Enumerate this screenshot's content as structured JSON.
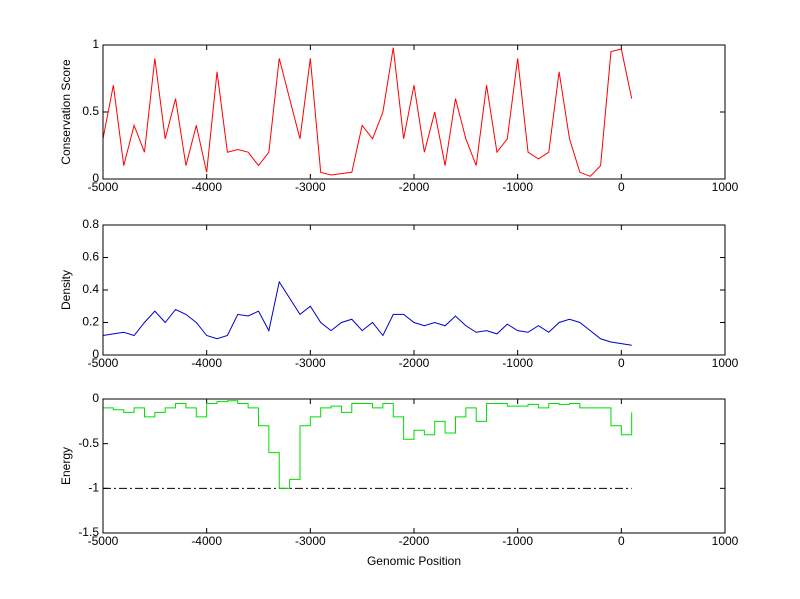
{
  "chart_data": [
    {
      "type": "line",
      "ylabel": "Conservation Score",
      "color": "#ff0000",
      "x": [
        -5000,
        -4900,
        -4800,
        -4700,
        -4600,
        -4500,
        -4400,
        -4300,
        -4200,
        -4100,
        -4000,
        -3900,
        -3800,
        -3700,
        -3600,
        -3500,
        -3400,
        -3300,
        -3200,
        -3100,
        -3000,
        -2900,
        -2800,
        -2700,
        -2600,
        -2500,
        -2400,
        -2300,
        -2200,
        -2100,
        -2000,
        -1900,
        -1800,
        -1700,
        -1600,
        -1500,
        -1400,
        -1300,
        -1200,
        -1100,
        -1000,
        -900,
        -800,
        -700,
        -600,
        -500,
        -400,
        -300,
        -200,
        -100,
        0,
        100
      ],
      "values": [
        0.3,
        0.7,
        0.1,
        0.4,
        0.2,
        0.9,
        0.3,
        0.6,
        0.1,
        0.4,
        0.05,
        0.8,
        0.2,
        0.22,
        0.2,
        0.1,
        0.2,
        0.9,
        0.6,
        0.3,
        0.9,
        0.05,
        0.03,
        0.04,
        0.05,
        0.4,
        0.3,
        0.5,
        0.98,
        0.3,
        0.7,
        0.2,
        0.5,
        0.1,
        0.6,
        0.3,
        0.1,
        0.7,
        0.2,
        0.3,
        0.9,
        0.2,
        0.15,
        0.2,
        0.8,
        0.3,
        0.05,
        0.02,
        0.1,
        0.95,
        0.97,
        0.6
      ],
      "xlim": [
        -5000,
        1000
      ],
      "xticks": [
        -5000,
        -4000,
        -3000,
        -2000,
        -1000,
        0,
        1000
      ],
      "ylim": [
        0,
        1
      ],
      "yticks": [
        0,
        0.5,
        1
      ]
    },
    {
      "type": "line",
      "ylabel": "Density",
      "color": "#0000cc",
      "x": [
        -5000,
        -4900,
        -4800,
        -4700,
        -4600,
        -4500,
        -4400,
        -4300,
        -4200,
        -4100,
        -4000,
        -3900,
        -3800,
        -3700,
        -3600,
        -3500,
        -3400,
        -3300,
        -3200,
        -3100,
        -3000,
        -2900,
        -2800,
        -2700,
        -2600,
        -2500,
        -2400,
        -2300,
        -2200,
        -2100,
        -2000,
        -1900,
        -1800,
        -1700,
        -1600,
        -1500,
        -1400,
        -1300,
        -1200,
        -1100,
        -1000,
        -900,
        -800,
        -700,
        -600,
        -500,
        -400,
        -300,
        -200,
        -100,
        0,
        100
      ],
      "values": [
        0.12,
        0.13,
        0.14,
        0.12,
        0.2,
        0.27,
        0.2,
        0.28,
        0.25,
        0.2,
        0.12,
        0.1,
        0.12,
        0.25,
        0.24,
        0.27,
        0.15,
        0.45,
        0.35,
        0.25,
        0.3,
        0.2,
        0.15,
        0.2,
        0.22,
        0.15,
        0.2,
        0.12,
        0.25,
        0.25,
        0.2,
        0.18,
        0.2,
        0.18,
        0.24,
        0.18,
        0.14,
        0.15,
        0.13,
        0.19,
        0.15,
        0.14,
        0.18,
        0.14,
        0.2,
        0.22,
        0.2,
        0.15,
        0.1,
        0.08,
        0.07,
        0.06
      ],
      "xlim": [
        -5000,
        1000
      ],
      "xticks": [
        -5000,
        -4000,
        -3000,
        -2000,
        -1000,
        0,
        1000
      ],
      "ylim": [
        0,
        0.8
      ],
      "yticks": [
        0,
        0.2,
        0.4,
        0.6,
        0.8
      ]
    },
    {
      "type": "line",
      "ylabel": "Energy",
      "xlabel": "Genomic Position",
      "color": "#00dd00",
      "drawstyle": "steps",
      "x": [
        -5000,
        -4900,
        -4800,
        -4700,
        -4600,
        -4500,
        -4400,
        -4300,
        -4200,
        -4100,
        -4000,
        -3900,
        -3800,
        -3700,
        -3600,
        -3500,
        -3400,
        -3300,
        -3200,
        -3100,
        -3000,
        -2900,
        -2800,
        -2700,
        -2600,
        -2500,
        -2400,
        -2300,
        -2200,
        -2100,
        -2000,
        -1900,
        -1800,
        -1700,
        -1600,
        -1500,
        -1400,
        -1300,
        -1200,
        -1100,
        -1000,
        -900,
        -800,
        -700,
        -600,
        -500,
        -400,
        -300,
        -200,
        -100,
        0,
        100
      ],
      "values": [
        -0.1,
        -0.12,
        -0.15,
        -0.1,
        -0.2,
        -0.15,
        -0.1,
        -0.05,
        -0.1,
        -0.2,
        -0.05,
        -0.03,
        -0.02,
        -0.05,
        -0.1,
        -0.3,
        -0.6,
        -1,
        -0.9,
        -0.3,
        -0.2,
        -0.1,
        -0.08,
        -0.15,
        -0.05,
        -0.05,
        -0.1,
        -0.05,
        -0.2,
        -0.45,
        -0.35,
        -0.4,
        -0.25,
        -0.38,
        -0.2,
        -0.1,
        -0.25,
        -0.05,
        -0.05,
        -0.08,
        -0.08,
        -0.06,
        -0.1,
        -0.05,
        -0.06,
        -0.05,
        -0.1,
        -0.1,
        -0.1,
        -0.3,
        -0.4,
        -0.15
      ],
      "reference_line": {
        "y": -1,
        "x": [
          -5000,
          100
        ]
      },
      "xlim": [
        -5000,
        1000
      ],
      "xticks": [
        -5000,
        -4000,
        -3000,
        -2000,
        -1000,
        0,
        1000
      ],
      "ylim": [
        -1.5,
        0
      ],
      "yticks": [
        -1.5,
        -1,
        -0.5,
        0
      ]
    }
  ]
}
